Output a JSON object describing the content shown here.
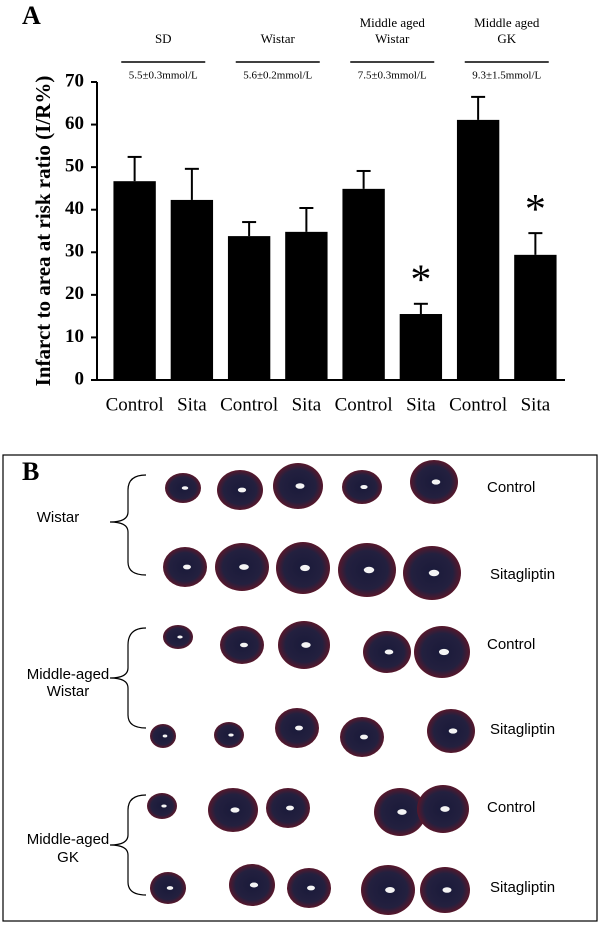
{
  "panel_a": {
    "label": "A"
  },
  "chart_data": {
    "type": "bar",
    "y_label": "Infarct to area at risk ratio (I/R%)",
    "categories": [
      "Control",
      "Sita",
      "Control",
      "Sita",
      "Control",
      "Sita",
      "Control",
      "Sita"
    ],
    "series": [
      {
        "name": "I/R",
        "color": "#000000",
        "values": [
          46.7,
          42.3,
          33.8,
          34.8,
          44.9,
          15.5,
          61.1,
          29.4
        ],
        "errors": [
          5.7,
          7.3,
          3.3,
          5.6,
          4.2,
          2.4,
          5.4,
          5.1
        ]
      }
    ],
    "ylim": [
      0,
      70
    ],
    "yticks": [
      0,
      10,
      20,
      30,
      40,
      50,
      60,
      70
    ],
    "grid": false,
    "groups": [
      {
        "name": [
          "SD"
        ],
        "glucose": "5.5±0.3mmol/L"
      },
      {
        "name": [
          "Wistar"
        ],
        "glucose": "5.6±0.2mmol/L"
      },
      {
        "name": [
          "Middle aged",
          "Wistar"
        ],
        "glucose": "7.5±0.3mmol/L"
      },
      {
        "name": [
          "Middle aged",
          "GK"
        ],
        "glucose": "9.3±1.5mmol/L"
      }
    ],
    "annotations": [
      {
        "index": 5,
        "text": "*"
      },
      {
        "index": 7,
        "text": "*"
      }
    ]
  },
  "panel_b": {
    "label": "B",
    "groups": [
      {
        "name": [
          "Wistar"
        ],
        "rows": [
          "Control",
          "Sitagliptin"
        ]
      },
      {
        "name": [
          "Middle-aged",
          "Wistar"
        ],
        "rows": [
          "Control",
          "Sitagliptin"
        ]
      },
      {
        "name": [
          "Middle-aged",
          "GK"
        ],
        "rows": [
          "Control",
          "Sitagliptin"
        ]
      }
    ]
  }
}
